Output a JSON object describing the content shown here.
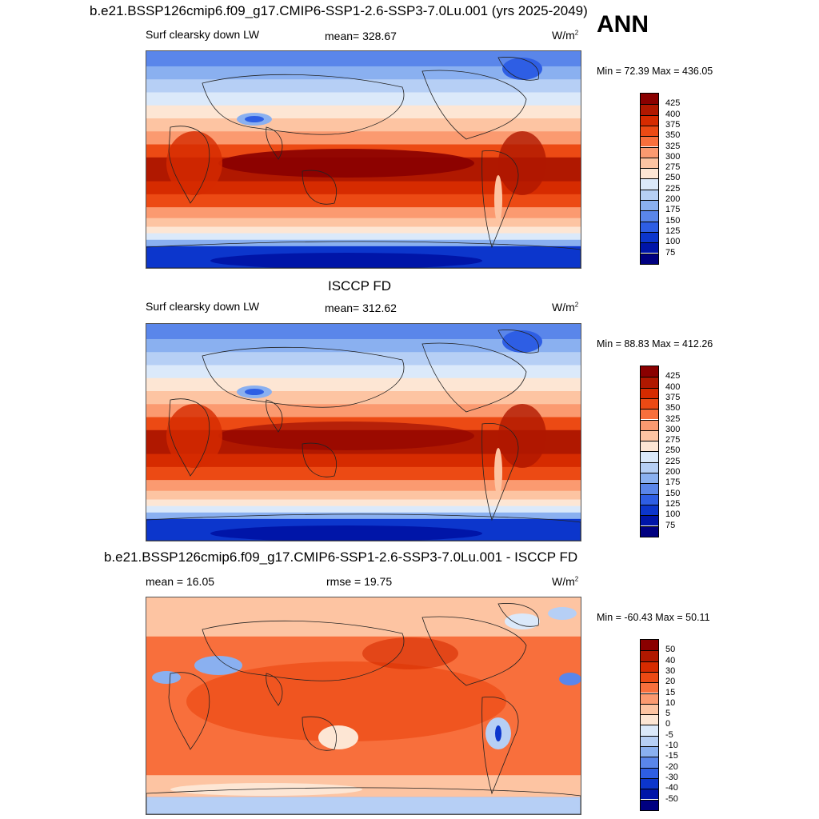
{
  "header": {
    "title": "b.e21.BSSP126cmip6.f09_g17.CMIP6-SSP1-2.6-SSP3-7.0Lu.001 (yrs 2025-2049)",
    "season": "ANN"
  },
  "panels": [
    {
      "left_label": "Surf clearsky down LW",
      "center_label": "mean= 328.67",
      "units": "W/m",
      "units_sup": "2",
      "minmax": "Min =  72.39 Max = 436.05",
      "kind": "model"
    },
    {
      "title": "ISCCP FD",
      "left_label": "Surf clearsky down LW",
      "center_label": "mean= 312.62",
      "units": "W/m",
      "units_sup": "2",
      "minmax": "Min =  88.83 Max = 412.26",
      "kind": "obs"
    },
    {
      "title": "b.e21.BSSP126cmip6.f09_g17.CMIP6-SSP1-2.6-SSP3-7.0Lu.001 - ISCCP FD",
      "left_label": "mean =  16.05",
      "center_label": "rmse =  19.75",
      "units": "W/m",
      "units_sup": "2",
      "minmax": "Min = -60.43 Max =  50.11",
      "kind": "diff"
    }
  ],
  "colorbars": {
    "abs_levels": [
      "425",
      "400",
      "375",
      "350",
      "325",
      "300",
      "275",
      "250",
      "225",
      "200",
      "175",
      "150",
      "125",
      "100",
      "75"
    ],
    "abs_colors": [
      "#8a0000",
      "#b01800",
      "#d62b00",
      "#ec4a14",
      "#f86f3c",
      "#fb9a70",
      "#fdc4a2",
      "#fde6d4",
      "#dbe9fa",
      "#b6cff5",
      "#8ab0f0",
      "#5a86ea",
      "#2e5ee4",
      "#0c36cc",
      "#0015a8",
      "#000080"
    ],
    "diff_levels": [
      "50",
      "40",
      "30",
      "20",
      "15",
      "10",
      "5",
      "0",
      "-5",
      "-10",
      "-15",
      "-20",
      "-30",
      "-40",
      "-50"
    ],
    "diff_colors": [
      "#8a0000",
      "#b01800",
      "#d62b00",
      "#ec4a14",
      "#f86f3c",
      "#fb9a70",
      "#fdc4a2",
      "#fde6d4",
      "#dbe9fa",
      "#b6cff5",
      "#8ab0f0",
      "#5a86ea",
      "#2e5ee4",
      "#0c36cc",
      "#0015a8",
      "#000080"
    ]
  }
}
